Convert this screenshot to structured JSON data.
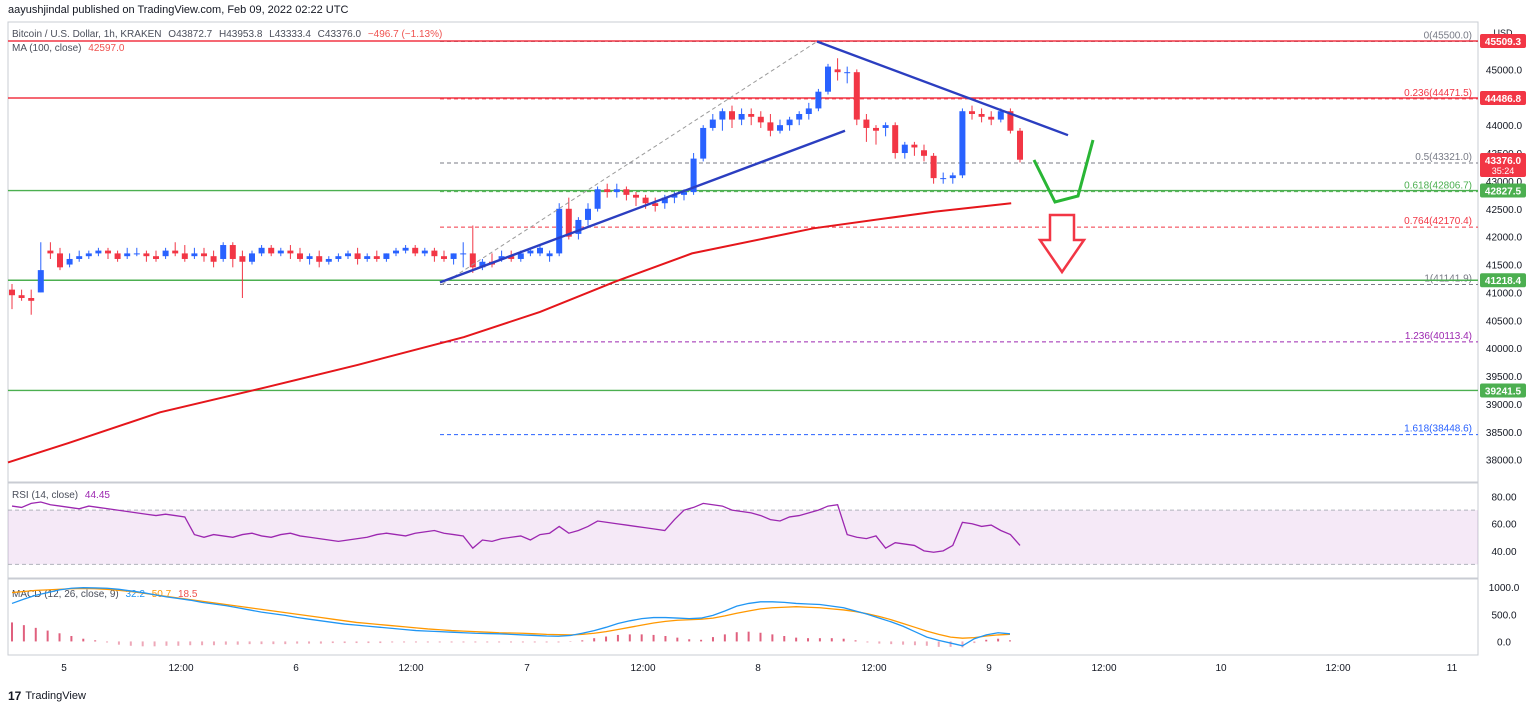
{
  "header": {
    "published": "aayushjindal published on TradingView.com, Feb 09, 2022 02:22 UTC"
  },
  "legend": {
    "symbol": "Bitcoin / U.S. Dollar, 1h, KRAKEN",
    "open": "O43872.7",
    "high": "H43953.8",
    "low": "L43333.4",
    "close": "C43376.0",
    "change": "−496.7 (−1.13%)",
    "ma_label": "MA (100, close)",
    "ma_value": "42597.0",
    "rsi_label": "RSI (14, close)",
    "rsi_value": "44.45",
    "macd_label": "MACD (12, 26, close, 9)",
    "macd_v1": "32.2",
    "macd_v2": "50.7",
    "macd_v3": "18.5"
  },
  "currency": "USD",
  "footer": {
    "brand": "TradingView"
  },
  "colors": {
    "up": "#2962ff",
    "down": "#f23645",
    "ma": "#e5161b",
    "fib": "#8c8c8c",
    "resistance": "#f23645",
    "support": "#4caf50",
    "trend": "#2b3ec0",
    "rsi": "#9c27b0",
    "macd": "#2196f3",
    "signal": "#ff9800"
  },
  "chart_data": {
    "type": "candlestick",
    "price_axis": {
      "ticks": [
        45000,
        44500,
        44000,
        43500,
        43000,
        42500,
        42000,
        41500,
        41000,
        40500,
        40000,
        39500,
        39000,
        38500,
        38000
      ]
    },
    "time_axis": {
      "labels": [
        "5",
        "12:00",
        "6",
        "12:00",
        "7",
        "12:00",
        "8",
        "12:00",
        "9",
        "12:00",
        "10",
        "12:00",
        "11"
      ]
    },
    "candles": [
      [
        41050,
        41150,
        40950,
        40700
      ],
      [
        40950,
        41050,
        40900,
        40850
      ],
      [
        40900,
        41050,
        40850,
        40600
      ],
      [
        41000,
        41900,
        41400,
        41000
      ],
      [
        41750,
        41900,
        41700,
        41600
      ],
      [
        41700,
        41800,
        41450,
        41400
      ],
      [
        41500,
        41700,
        41600,
        41450
      ],
      [
        41600,
        41750,
        41650,
        41550
      ],
      [
        41650,
        41750,
        41700,
        41600
      ],
      [
        41700,
        41800,
        41750,
        41650
      ],
      [
        41750,
        41800,
        41700,
        41600
      ],
      [
        41700,
        41750,
        41600,
        41550
      ],
      [
        41650,
        41800,
        41700,
        41600
      ],
      [
        41700,
        41800,
        41700,
        41650
      ],
      [
        41700,
        41750,
        41650,
        41550
      ],
      [
        41650,
        41750,
        41600,
        41550
      ],
      [
        41650,
        41800,
        41750,
        41600
      ],
      [
        41750,
        41900,
        41700,
        41650
      ],
      [
        41700,
        41850,
        41600,
        41550
      ],
      [
        41650,
        41800,
        41700,
        41600
      ],
      [
        41700,
        41800,
        41650,
        41550
      ],
      [
        41650,
        41750,
        41550,
        41450
      ],
      [
        41600,
        41900,
        41850,
        41550
      ],
      [
        41850,
        41900,
        41600,
        41450
      ],
      [
        41650,
        41750,
        41550,
        40900
      ],
      [
        41550,
        41750,
        41700,
        41500
      ],
      [
        41700,
        41850,
        41800,
        41650
      ],
      [
        41800,
        41850,
        41700,
        41650
      ],
      [
        41700,
        41800,
        41750,
        41650
      ],
      [
        41750,
        41850,
        41700,
        41600
      ],
      [
        41700,
        41800,
        41600,
        41550
      ],
      [
        41600,
        41700,
        41650,
        41500
      ],
      [
        41650,
        41750,
        41550,
        41450
      ],
      [
        41550,
        41650,
        41600,
        41500
      ],
      [
        41600,
        41700,
        41650,
        41550
      ],
      [
        41650,
        41750,
        41700,
        41600
      ],
      [
        41700,
        41800,
        41600,
        41500
      ],
      [
        41600,
        41700,
        41650,
        41550
      ],
      [
        41650,
        41750,
        41600,
        41550
      ],
      [
        41600,
        41700,
        41700,
        41550
      ],
      [
        41700,
        41800,
        41750,
        41650
      ],
      [
        41750,
        41850,
        41800,
        41700
      ],
      [
        41800,
        41850,
        41700,
        41650
      ],
      [
        41700,
        41800,
        41750,
        41650
      ],
      [
        41750,
        41800,
        41650,
        41550
      ],
      [
        41650,
        41750,
        41600,
        41550
      ],
      [
        41600,
        41650,
        41700,
        41500
      ],
      [
        41700,
        41900,
        41700,
        41450
      ],
      [
        41700,
        42200,
        41450,
        41350
      ],
      [
        41450,
        41600,
        41550,
        41400
      ],
      [
        41550,
        41700,
        41500,
        41450
      ],
      [
        41600,
        41750,
        41650,
        41550
      ],
      [
        41650,
        41750,
        41600,
        41550
      ],
      [
        41600,
        41750,
        41700,
        41550
      ],
      [
        41700,
        41800,
        41750,
        41650
      ],
      [
        41700,
        41850,
        41800,
        41650
      ],
      [
        41650,
        41750,
        41700,
        41550
      ],
      [
        41700,
        42600,
        42500,
        41650
      ],
      [
        42500,
        42700,
        42000,
        41950
      ],
      [
        42050,
        42350,
        42300,
        41950
      ],
      [
        42300,
        42600,
        42500,
        42200
      ],
      [
        42500,
        42900,
        42850,
        42450
      ],
      [
        42850,
        42950,
        42800,
        42700
      ],
      [
        42800,
        42950,
        42850,
        42700
      ],
      [
        42850,
        42900,
        42750,
        42650
      ],
      [
        42750,
        42800,
        42700,
        42550
      ],
      [
        42700,
        42750,
        42600,
        42500
      ],
      [
        42600,
        42700,
        42550,
        42450
      ],
      [
        42600,
        42750,
        42700,
        42500
      ],
      [
        42700,
        42800,
        42750,
        42600
      ],
      [
        42750,
        42850,
        42800,
        42650
      ],
      [
        42800,
        43500,
        43400,
        42750
      ],
      [
        43400,
        44000,
        43950,
        43350
      ],
      [
        43950,
        44200,
        44100,
        43900
      ],
      [
        44100,
        44300,
        44250,
        43900
      ],
      [
        44250,
        44350,
        44100,
        43950
      ],
      [
        44100,
        44300,
        44200,
        44000
      ],
      [
        44200,
        44300,
        44150,
        44000
      ],
      [
        44150,
        44250,
        44050,
        43950
      ],
      [
        44050,
        44200,
        43900,
        43800
      ],
      [
        43900,
        44100,
        44000,
        43850
      ],
      [
        44000,
        44150,
        44100,
        43900
      ],
      [
        44100,
        44250,
        44200,
        44000
      ],
      [
        44200,
        44400,
        44300,
        44100
      ],
      [
        44300,
        44650,
        44600,
        44250
      ],
      [
        44600,
        45100,
        45050,
        44550
      ],
      [
        45000,
        45200,
        44950,
        44800
      ],
      [
        44950,
        45050,
        44950,
        44750
      ],
      [
        44950,
        45000,
        44100,
        44000
      ],
      [
        44100,
        44200,
        43950,
        43700
      ],
      [
        43950,
        44000,
        43900,
        43650
      ],
      [
        43950,
        44050,
        44000,
        43800
      ],
      [
        44000,
        44050,
        43500,
        43400
      ],
      [
        43500,
        43700,
        43650,
        43400
      ],
      [
        43650,
        43700,
        43600,
        43450
      ],
      [
        43550,
        43650,
        43450,
        43350
      ],
      [
        43450,
        43500,
        43050,
        42950
      ],
      [
        43050,
        43150,
        43050,
        42950
      ],
      [
        43050,
        43150,
        43100,
        42950
      ],
      [
        43100,
        44300,
        44250,
        43050
      ],
      [
        44250,
        44350,
        44200,
        44100
      ],
      [
        44200,
        44300,
        44150,
        44050
      ],
      [
        44150,
        44250,
        44100,
        44000
      ],
      [
        44100,
        44300,
        44250,
        44050
      ],
      [
        44250,
        44300,
        43900,
        43850
      ],
      [
        43900,
        43950,
        43380,
        43330
      ]
    ],
    "ma100": [
      [
        0,
        37950
      ],
      [
        40,
        38300
      ],
      [
        100,
        38850
      ],
      [
        170,
        39300
      ],
      [
        230,
        39700
      ],
      [
        300,
        40200
      ],
      [
        350,
        40650
      ],
      [
        400,
        41200
      ],
      [
        450,
        41700
      ],
      [
        530,
        42150
      ],
      [
        610,
        42450
      ],
      [
        660,
        42600
      ]
    ],
    "resistance_lines": [
      45509.3,
      44486.8
    ],
    "support_lines": [
      42827.5,
      41218.4,
      39241.5
    ],
    "price_labels": [
      {
        "text": "45509.3",
        "price": 45509.3,
        "color": "red"
      },
      {
        "text": "44486.8",
        "price": 44486.8,
        "color": "red"
      },
      {
        "text": "43376.0",
        "price": 43376.0,
        "color": "red",
        "extra": "35:24"
      },
      {
        "text": "42827.5",
        "price": 42827.5,
        "color": "green"
      },
      {
        "text": "41218.4",
        "price": 41218.4,
        "color": "green"
      },
      {
        "text": "39241.5",
        "price": 39241.5,
        "color": "green"
      }
    ],
    "fib_levels": [
      {
        "ratio": "0",
        "price": 45500.0,
        "label": "0(45500.0)"
      },
      {
        "ratio": "0.236",
        "price": 44471.5,
        "label": "0.236(44471.5)"
      },
      {
        "ratio": "0.5",
        "price": 43321.0,
        "label": "0.5(43321.0)"
      },
      {
        "ratio": "0.618",
        "price": 42806.7,
        "label": "0.618(42806.7)"
      },
      {
        "ratio": "0.764",
        "price": 42170.4,
        "label": "0.764(42170.4)"
      },
      {
        "ratio": "1",
        "price": 41141.9,
        "label": "1(41141.9)"
      },
      {
        "ratio": "1.236",
        "price": 40113.4,
        "label": "1.236(40113.4)"
      },
      {
        "ratio": "1.618",
        "price": 38448.6,
        "label": "1.618(38448.6)"
      }
    ],
    "rsi": {
      "ticks": [
        80.0,
        60.0,
        40.0
      ],
      "band": [
        70,
        30
      ],
      "values": [
        73,
        72,
        75,
        76,
        74,
        73,
        72,
        71,
        73,
        72,
        71,
        70,
        69,
        68,
        67,
        66,
        67,
        66,
        65,
        52,
        50,
        52,
        51,
        50,
        52,
        53,
        51,
        50,
        52,
        53,
        51,
        50,
        49,
        48,
        47,
        48,
        49,
        50,
        52,
        53,
        52,
        51,
        53,
        54,
        55,
        53,
        52,
        51,
        42,
        48,
        47,
        49,
        50,
        51,
        48,
        52,
        53,
        58,
        53,
        55,
        58,
        62,
        61,
        60,
        59,
        58,
        57,
        56,
        55,
        63,
        70,
        72,
        75,
        74,
        73,
        70,
        69,
        68,
        66,
        63,
        62,
        65,
        66,
        68,
        70,
        73,
        74,
        52,
        50,
        49,
        51,
        42,
        46,
        45,
        44,
        40,
        39,
        40,
        44,
        61,
        60,
        58,
        59,
        55,
        52,
        44
      ]
    },
    "macd": {
      "ticks": [
        1000.0,
        500.0,
        0.0
      ],
      "line": [
        700,
        780,
        850,
        900,
        950,
        980,
        990,
        985,
        980,
        960,
        930,
        900,
        860,
        820,
        790,
        760,
        720,
        690,
        660,
        620,
        580,
        540,
        510,
        480,
        440,
        410,
        380,
        350,
        320,
        300,
        280,
        260,
        240,
        220,
        200,
        190,
        180,
        170,
        160,
        150,
        145,
        140,
        130,
        120,
        110,
        100,
        95,
        110,
        150,
        200,
        260,
        330,
        380,
        420,
        440,
        440,
        430,
        420,
        430,
        480,
        560,
        650,
        700,
        730,
        730,
        720,
        700,
        690,
        680,
        650,
        620,
        560,
        500,
        430,
        360,
        280,
        180,
        80,
        20,
        -30,
        -80,
        50,
        120,
        160,
        140
      ],
      "signal": [
        900,
        920,
        940,
        950,
        960,
        970,
        975,
        970,
        960,
        940,
        920,
        890,
        860,
        830,
        800,
        770,
        740,
        710,
        680,
        650,
        620,
        590,
        560,
        530,
        500,
        470,
        440,
        410,
        380,
        350,
        330,
        310,
        290,
        270,
        250,
        230,
        215,
        200,
        190,
        180,
        170,
        160,
        155,
        150,
        140,
        130,
        125,
        120,
        130,
        150,
        180,
        220,
        260,
        300,
        340,
        370,
        390,
        400,
        410,
        430,
        470,
        520,
        560,
        600,
        620,
        630,
        640,
        630,
        620,
        600,
        580,
        550,
        510,
        460,
        400,
        330,
        260,
        190,
        130,
        80,
        60,
        70,
        100,
        120,
        130
      ],
      "hist": [
        350,
        300,
        250,
        200,
        150,
        100,
        50,
        20,
        -20,
        -60,
        -80,
        -90,
        -90,
        -80,
        -80,
        -70,
        -70,
        -70,
        -60,
        -60,
        -50,
        -50,
        -50,
        -50,
        -40,
        -40,
        -40,
        -30,
        -30,
        -30,
        -30,
        -30,
        -20,
        -20,
        -20,
        -20,
        -20,
        -20,
        -20,
        -20,
        -20,
        -20,
        -20,
        -20,
        -20,
        -20,
        -20,
        -10,
        20,
        60,
        90,
        120,
        130,
        130,
        120,
        100,
        70,
        40,
        30,
        80,
        130,
        170,
        180,
        160,
        130,
        100,
        70,
        60,
        60,
        60,
        50,
        20,
        -20,
        -40,
        -50,
        -60,
        -70,
        -80,
        -100,
        -100,
        -110,
        -30,
        30,
        50,
        20
      ]
    }
  }
}
